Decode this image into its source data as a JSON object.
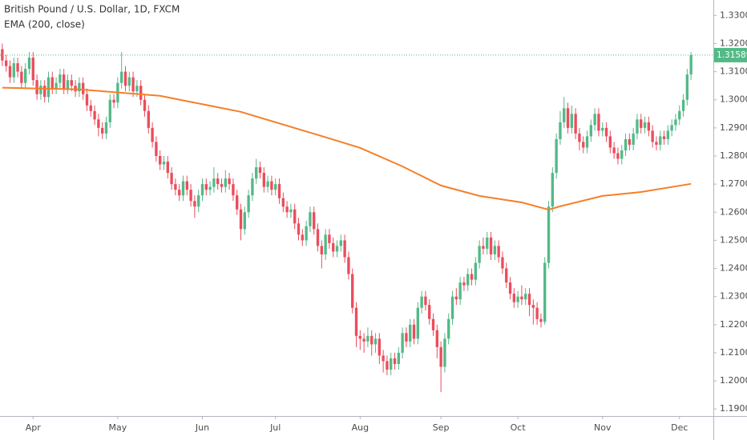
{
  "chart_data": {
    "type": "candlestick",
    "title": "British Pound / U.S. Dollar, 1D, FXCM",
    "up_color": "#53b987",
    "down_color": "#eb4d5c",
    "xlim": [
      -0.6,
      184.8
    ],
    "ylim": [
      1.1875,
      1.3355
    ],
    "yticks": [
      {
        "value": 1.19,
        "label": "1.19000"
      },
      {
        "value": 1.2,
        "label": "1.20000"
      },
      {
        "value": 1.21,
        "label": "1.21000"
      },
      {
        "value": 1.22,
        "label": "1.22000"
      },
      {
        "value": 1.23,
        "label": "1.23000"
      },
      {
        "value": 1.24,
        "label": "1.24000"
      },
      {
        "value": 1.25,
        "label": "1.25000"
      },
      {
        "value": 1.26,
        "label": "1.26000"
      },
      {
        "value": 1.27,
        "label": "1.27000"
      },
      {
        "value": 1.28,
        "label": "1.28000"
      },
      {
        "value": 1.29,
        "label": "1.29000"
      },
      {
        "value": 1.3,
        "label": "1.30000"
      },
      {
        "value": 1.31,
        "label": "1.31000"
      },
      {
        "value": 1.32,
        "label": "1.32000"
      },
      {
        "value": 1.33,
        "label": "1.33000"
      }
    ],
    "xticks": [
      {
        "value": 8,
        "label": "Apr"
      },
      {
        "value": 30,
        "label": "May"
      },
      {
        "value": 52,
        "label": "Jun"
      },
      {
        "value": 71,
        "label": "Jul"
      },
      {
        "value": 93,
        "label": "Aug"
      },
      {
        "value": 114,
        "label": "Sep"
      },
      {
        "value": 134,
        "label": "Oct"
      },
      {
        "value": 156,
        "label": "Nov"
      },
      {
        "value": 176,
        "label": "Dec"
      }
    ],
    "ema": {
      "name": "EMA (200, close)",
      "color": "#f57f29",
      "x": [
        0,
        20,
        41,
        62,
        83,
        93,
        104,
        114,
        124,
        135,
        142,
        145,
        156,
        166,
        179
      ],
      "values": [
        1.3043,
        1.3037,
        1.3014,
        1.2957,
        1.2871,
        1.2829,
        1.2763,
        1.2695,
        1.2658,
        1.2635,
        1.2609,
        1.2621,
        1.2658,
        1.2672,
        1.2701
      ]
    },
    "ohlc": [
      [
        1.318,
        1.32,
        1.312,
        1.314
      ],
      [
        1.314,
        1.316,
        1.31,
        1.312
      ],
      [
        1.312,
        1.314,
        1.306,
        1.308
      ],
      [
        1.308,
        1.315,
        1.306,
        1.313
      ],
      [
        1.313,
        1.315,
        1.308,
        1.31
      ],
      [
        1.31,
        1.312,
        1.304,
        1.306
      ],
      [
        1.306,
        1.313,
        1.304,
        1.311
      ],
      [
        1.311,
        1.317,
        1.309,
        1.315
      ],
      [
        1.315,
        1.317,
        1.305,
        1.307
      ],
      [
        1.307,
        1.309,
        1.3,
        1.302
      ],
      [
        1.302,
        1.307,
        1.3,
        1.305
      ],
      [
        1.305,
        1.307,
        1.299,
        1.301
      ],
      [
        1.301,
        1.31,
        1.299,
        1.308
      ],
      [
        1.308,
        1.31,
        1.302,
        1.304
      ],
      [
        1.304,
        1.308,
        1.302,
        1.306
      ],
      [
        1.306,
        1.311,
        1.304,
        1.309
      ],
      [
        1.309,
        1.311,
        1.302,
        1.304
      ],
      [
        1.304,
        1.309,
        1.302,
        1.307
      ],
      [
        1.307,
        1.309,
        1.303,
        1.305
      ],
      [
        1.305,
        1.307,
        1.301,
        1.303
      ],
      [
        1.303,
        1.308,
        1.301,
        1.306
      ],
      [
        1.306,
        1.308,
        1.3,
        1.302
      ],
      [
        1.302,
        1.304,
        1.296,
        1.298
      ],
      [
        1.298,
        1.3,
        1.294,
        1.296
      ],
      [
        1.296,
        1.298,
        1.291,
        1.293
      ],
      [
        1.293,
        1.295,
        1.287,
        1.29
      ],
      [
        1.29,
        1.292,
        1.286,
        1.288
      ],
      [
        1.288,
        1.294,
        1.286,
        1.292
      ],
      [
        1.292,
        1.302,
        1.29,
        1.3
      ],
      [
        1.3,
        1.302,
        1.297,
        1.299
      ],
      [
        1.299,
        1.308,
        1.297,
        1.306
      ],
      [
        1.306,
        1.317,
        1.304,
        1.31
      ],
      [
        1.31,
        1.312,
        1.303,
        1.305
      ],
      [
        1.305,
        1.31,
        1.303,
        1.308
      ],
      [
        1.308,
        1.31,
        1.301,
        1.303
      ],
      [
        1.303,
        1.307,
        1.301,
        1.305
      ],
      [
        1.305,
        1.307,
        1.298,
        1.3
      ],
      [
        1.3,
        1.302,
        1.294,
        1.296
      ],
      [
        1.296,
        1.298,
        1.288,
        1.29
      ],
      [
        1.29,
        1.292,
        1.283,
        1.285
      ],
      [
        1.285,
        1.287,
        1.278,
        1.28
      ],
      [
        1.28,
        1.282,
        1.275,
        1.277
      ],
      [
        1.277,
        1.28,
        1.275,
        1.278
      ],
      [
        1.278,
        1.28,
        1.272,
        1.274
      ],
      [
        1.274,
        1.276,
        1.268,
        1.27
      ],
      [
        1.27,
        1.272,
        1.266,
        1.268
      ],
      [
        1.268,
        1.27,
        1.264,
        1.266
      ],
      [
        1.266,
        1.273,
        1.264,
        1.271
      ],
      [
        1.271,
        1.273,
        1.266,
        1.268
      ],
      [
        1.268,
        1.27,
        1.262,
        1.264
      ],
      [
        1.264,
        1.266,
        1.258,
        1.262
      ],
      [
        1.262,
        1.268,
        1.26,
        1.266
      ],
      [
        1.266,
        1.272,
        1.264,
        1.27
      ],
      [
        1.27,
        1.272,
        1.266,
        1.268
      ],
      [
        1.268,
        1.271,
        1.266,
        1.269
      ],
      [
        1.269,
        1.276,
        1.267,
        1.272
      ],
      [
        1.272,
        1.274,
        1.268,
        1.27
      ],
      [
        1.27,
        1.272,
        1.267,
        1.269
      ],
      [
        1.269,
        1.275,
        1.267,
        1.272
      ],
      [
        1.272,
        1.274,
        1.268,
        1.27
      ],
      [
        1.27,
        1.272,
        1.264,
        1.266
      ],
      [
        1.266,
        1.268,
        1.259,
        1.261
      ],
      [
        1.261,
        1.263,
        1.25,
        1.254
      ],
      [
        1.254,
        1.262,
        1.252,
        1.26
      ],
      [
        1.26,
        1.268,
        1.258,
        1.266
      ],
      [
        1.266,
        1.274,
        1.264,
        1.272
      ],
      [
        1.272,
        1.279,
        1.27,
        1.276
      ],
      [
        1.276,
        1.278,
        1.272,
        1.274
      ],
      [
        1.274,
        1.276,
        1.267,
        1.269
      ],
      [
        1.269,
        1.273,
        1.267,
        1.271
      ],
      [
        1.271,
        1.273,
        1.266,
        1.268
      ],
      [
        1.268,
        1.272,
        1.266,
        1.27
      ],
      [
        1.27,
        1.272,
        1.263,
        1.265
      ],
      [
        1.265,
        1.267,
        1.26,
        1.262
      ],
      [
        1.262,
        1.264,
        1.258,
        1.26
      ],
      [
        1.26,
        1.263,
        1.258,
        1.261
      ],
      [
        1.261,
        1.263,
        1.254,
        1.256
      ],
      [
        1.256,
        1.258,
        1.25,
        1.252
      ],
      [
        1.252,
        1.254,
        1.248,
        1.25
      ],
      [
        1.25,
        1.257,
        1.248,
        1.255
      ],
      [
        1.255,
        1.262,
        1.253,
        1.26
      ],
      [
        1.26,
        1.262,
        1.252,
        1.254
      ],
      [
        1.254,
        1.256,
        1.246,
        1.248
      ],
      [
        1.248,
        1.25,
        1.24,
        1.245
      ],
      [
        1.245,
        1.254,
        1.243,
        1.252
      ],
      [
        1.252,
        1.254,
        1.247,
        1.249
      ],
      [
        1.249,
        1.251,
        1.244,
        1.246
      ],
      [
        1.246,
        1.25,
        1.244,
        1.248
      ],
      [
        1.248,
        1.252,
        1.246,
        1.25
      ],
      [
        1.25,
        1.252,
        1.242,
        1.244
      ],
      [
        1.244,
        1.246,
        1.236,
        1.238
      ],
      [
        1.238,
        1.24,
        1.224,
        1.226
      ],
      [
        1.226,
        1.228,
        1.212,
        1.216
      ],
      [
        1.216,
        1.218,
        1.211,
        1.215
      ],
      [
        1.215,
        1.217,
        1.21,
        1.214
      ],
      [
        1.214,
        1.219,
        1.212,
        1.216
      ],
      [
        1.216,
        1.218,
        1.209,
        1.213
      ],
      [
        1.213,
        1.217,
        1.21,
        1.215
      ],
      [
        1.215,
        1.217,
        1.206,
        1.209
      ],
      [
        1.209,
        1.211,
        1.203,
        1.207
      ],
      [
        1.207,
        1.209,
        1.202,
        1.204
      ],
      [
        1.204,
        1.21,
        1.202,
        1.208
      ],
      [
        1.208,
        1.21,
        1.204,
        1.206
      ],
      [
        1.206,
        1.212,
        1.204,
        1.21
      ],
      [
        1.21,
        1.219,
        1.208,
        1.217
      ],
      [
        1.217,
        1.219,
        1.212,
        1.214
      ],
      [
        1.214,
        1.222,
        1.212,
        1.22
      ],
      [
        1.22,
        1.222,
        1.213,
        1.215
      ],
      [
        1.215,
        1.228,
        1.213,
        1.226
      ],
      [
        1.226,
        1.232,
        1.224,
        1.23
      ],
      [
        1.23,
        1.232,
        1.225,
        1.227
      ],
      [
        1.227,
        1.229,
        1.22,
        1.222
      ],
      [
        1.222,
        1.224,
        1.216,
        1.218
      ],
      [
        1.218,
        1.22,
        1.208,
        1.212
      ],
      [
        1.212,
        1.214,
        1.196,
        1.205
      ],
      [
        1.205,
        1.217,
        1.203,
        1.215
      ],
      [
        1.215,
        1.224,
        1.213,
        1.222
      ],
      [
        1.222,
        1.232,
        1.22,
        1.23
      ],
      [
        1.23,
        1.233,
        1.227,
        1.229
      ],
      [
        1.229,
        1.237,
        1.227,
        1.235
      ],
      [
        1.235,
        1.237,
        1.232,
        1.234
      ],
      [
        1.234,
        1.24,
        1.232,
        1.238
      ],
      [
        1.238,
        1.24,
        1.234,
        1.236
      ],
      [
        1.236,
        1.244,
        1.234,
        1.242
      ],
      [
        1.242,
        1.25,
        1.24,
        1.248
      ],
      [
        1.248,
        1.251,
        1.245,
        1.247
      ],
      [
        1.247,
        1.253,
        1.245,
        1.251
      ],
      [
        1.251,
        1.253,
        1.243,
        1.245
      ],
      [
        1.245,
        1.25,
        1.243,
        1.248
      ],
      [
        1.248,
        1.25,
        1.242,
        1.244
      ],
      [
        1.244,
        1.246,
        1.238,
        1.24
      ],
      [
        1.24,
        1.242,
        1.233,
        1.235
      ],
      [
        1.235,
        1.237,
        1.229,
        1.231
      ],
      [
        1.231,
        1.233,
        1.226,
        1.228
      ],
      [
        1.228,
        1.232,
        1.226,
        1.23
      ],
      [
        1.23,
        1.234,
        1.227,
        1.229
      ],
      [
        1.229,
        1.233,
        1.227,
        1.231
      ],
      [
        1.231,
        1.233,
        1.223,
        1.227
      ],
      [
        1.227,
        1.229,
        1.22,
        1.226
      ],
      [
        1.226,
        1.228,
        1.22,
        1.222
      ],
      [
        1.222,
        1.224,
        1.219,
        1.221
      ],
      [
        1.221,
        1.244,
        1.22,
        1.242
      ],
      [
        1.242,
        1.264,
        1.24,
        1.262
      ],
      [
        1.262,
        1.276,
        1.26,
        1.274
      ],
      [
        1.274,
        1.288,
        1.272,
        1.286
      ],
      [
        1.286,
        1.296,
        1.284,
        1.292
      ],
      [
        1.292,
        1.301,
        1.29,
        1.297
      ],
      [
        1.297,
        1.299,
        1.288,
        1.29
      ],
      [
        1.29,
        1.298,
        1.288,
        1.295
      ],
      [
        1.295,
        1.297,
        1.286,
        1.288
      ],
      [
        1.288,
        1.29,
        1.282,
        1.285
      ],
      [
        1.285,
        1.287,
        1.281,
        1.283
      ],
      [
        1.283,
        1.289,
        1.281,
        1.287
      ],
      [
        1.287,
        1.293,
        1.285,
        1.291
      ],
      [
        1.291,
        1.297,
        1.289,
        1.295
      ],
      [
        1.295,
        1.297,
        1.287,
        1.289
      ],
      [
        1.289,
        1.292,
        1.287,
        1.29
      ],
      [
        1.29,
        1.292,
        1.285,
        1.287
      ],
      [
        1.287,
        1.289,
        1.281,
        1.283
      ],
      [
        1.283,
        1.285,
        1.279,
        1.281
      ],
      [
        1.281,
        1.283,
        1.277,
        1.279
      ],
      [
        1.279,
        1.284,
        1.277,
        1.282
      ],
      [
        1.282,
        1.288,
        1.28,
        1.286
      ],
      [
        1.286,
        1.288,
        1.282,
        1.284
      ],
      [
        1.284,
        1.29,
        1.282,
        1.288
      ],
      [
        1.288,
        1.295,
        1.286,
        1.293
      ],
      [
        1.293,
        1.295,
        1.288,
        1.29
      ],
      [
        1.29,
        1.294,
        1.288,
        1.292
      ],
      [
        1.292,
        1.294,
        1.287,
        1.289
      ],
      [
        1.289,
        1.291,
        1.283,
        1.285
      ],
      [
        1.285,
        1.287,
        1.282,
        1.284
      ],
      [
        1.284,
        1.289,
        1.282,
        1.287
      ],
      [
        1.287,
        1.289,
        1.284,
        1.286
      ],
      [
        1.286,
        1.291,
        1.284,
        1.289
      ],
      [
        1.289,
        1.293,
        1.287,
        1.291
      ],
      [
        1.291,
        1.295,
        1.289,
        1.293
      ],
      [
        1.293,
        1.298,
        1.291,
        1.296
      ],
      [
        1.296,
        1.302,
        1.294,
        1.3
      ],
      [
        1.3,
        1.311,
        1.298,
        1.309
      ],
      [
        1.309,
        1.317,
        1.307,
        1.31589
      ]
    ]
  }
}
